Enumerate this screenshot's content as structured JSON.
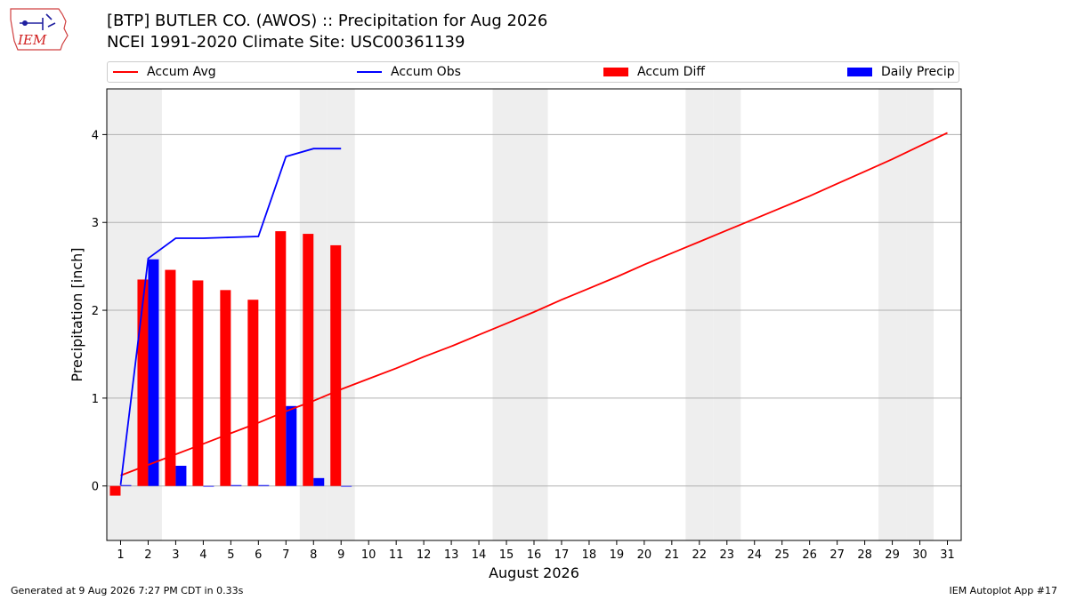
{
  "logo": {
    "text": "IEM"
  },
  "header": {
    "title": "[BTP] BUTLER CO. (AWOS) :: Precipitation for Aug 2026",
    "subtitle": "NCEI 1991-2020 Climate Site: USC00361139"
  },
  "legend": [
    {
      "label": "Accum Avg",
      "color": "#ff0000",
      "kind": "line"
    },
    {
      "label": "Accum Obs",
      "color": "#0000ff",
      "kind": "line"
    },
    {
      "label": "Accum Diff",
      "color": "#ff0000",
      "kind": "bar"
    },
    {
      "label": "Daily Precip",
      "color": "#0000ff",
      "kind": "bar"
    }
  ],
  "footer": {
    "generated": "Generated at 9 Aug 2026 7:27 PM CDT in 0.33s",
    "app": "IEM Autoplot App #17"
  },
  "chart_data": {
    "type": "bar",
    "xlabel": "August 2026",
    "ylabel": "Precipitation [inch]",
    "xlim": [
      0.5,
      31.5
    ],
    "ylim": [
      -0.62,
      4.52
    ],
    "yticks": [
      0,
      1,
      2,
      3,
      4
    ],
    "days": [
      1,
      2,
      3,
      4,
      5,
      6,
      7,
      8,
      9,
      10,
      11,
      12,
      13,
      14,
      15,
      16,
      17,
      18,
      19,
      20,
      21,
      22,
      23,
      24,
      25,
      26,
      27,
      28,
      29,
      30,
      31
    ],
    "weekend_days": [
      1,
      2,
      8,
      9,
      15,
      16,
      22,
      23,
      29,
      30
    ],
    "grid": "horizontal",
    "colors": {
      "avg": "#ff0000",
      "obs": "#0000ff",
      "diff": "#ff0000",
      "daily": "#0000ff",
      "weekend": "#eeeeee"
    },
    "series": [
      {
        "name": "Accum Avg",
        "kind": "line",
        "x": [
          1,
          2,
          3,
          4,
          5,
          6,
          7,
          8,
          9,
          10,
          11,
          12,
          13,
          14,
          15,
          16,
          17,
          18,
          19,
          20,
          21,
          22,
          23,
          24,
          25,
          26,
          27,
          28,
          29,
          30,
          31
        ],
        "values": [
          0.12,
          0.24,
          0.36,
          0.48,
          0.6,
          0.72,
          0.85,
          0.97,
          1.1,
          1.22,
          1.34,
          1.47,
          1.59,
          1.72,
          1.85,
          1.98,
          2.12,
          2.25,
          2.38,
          2.52,
          2.65,
          2.78,
          2.91,
          3.04,
          3.17,
          3.3,
          3.44,
          3.58,
          3.72,
          3.87,
          4.02
        ]
      },
      {
        "name": "Accum Obs",
        "kind": "line",
        "x": [
          1,
          2,
          3,
          4,
          5,
          6,
          7,
          8,
          9
        ],
        "values": [
          0.01,
          2.59,
          2.82,
          2.82,
          2.83,
          2.84,
          3.75,
          3.84,
          3.84
        ]
      },
      {
        "name": "Accum Diff",
        "kind": "bar",
        "x": [
          1,
          2,
          3,
          4,
          5,
          6,
          7,
          8,
          9
        ],
        "values": [
          -0.11,
          2.35,
          2.46,
          2.34,
          2.23,
          2.12,
          2.9,
          2.87,
          2.74
        ]
      },
      {
        "name": "Daily Precip",
        "kind": "bar",
        "x": [
          1,
          2,
          3,
          4,
          5,
          6,
          7,
          8,
          9
        ],
        "values": [
          0.01,
          2.58,
          0.23,
          0.0,
          0.01,
          0.01,
          0.91,
          0.09,
          0.0
        ]
      }
    ]
  }
}
